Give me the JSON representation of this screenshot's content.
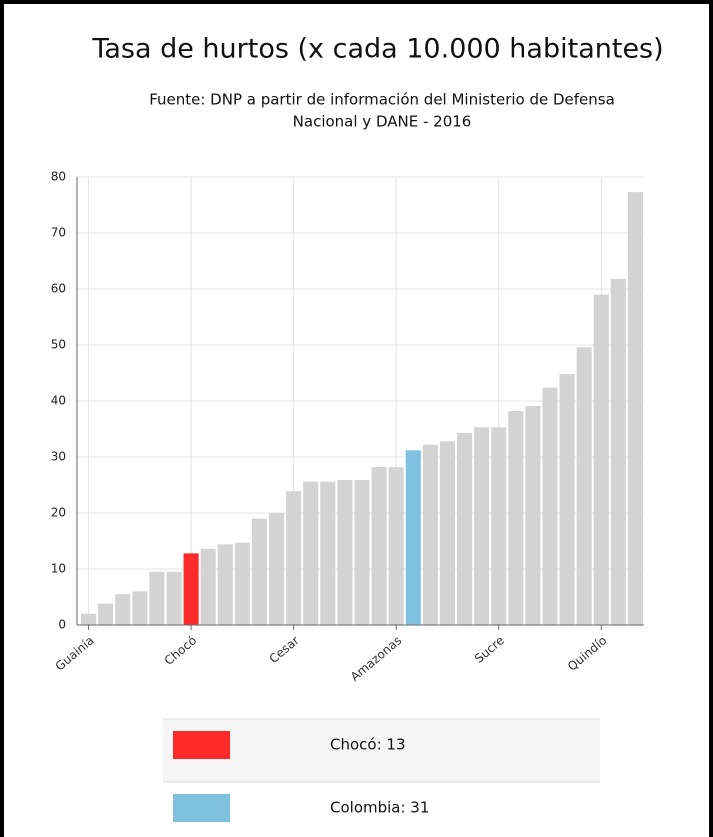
{
  "chart_data": {
    "type": "bar",
    "title": "Tasa de hurtos (x cada 10.000 habitantes)",
    "subtitle": [
      "Fuente: DNP a partir de información del Ministerio de Defensa",
      "Nacional y DANE - 2016"
    ],
    "categories": [
      "Guainía",
      null,
      null,
      null,
      null,
      null,
      "Chocó",
      null,
      null,
      null,
      null,
      null,
      "Cesar",
      null,
      null,
      null,
      null,
      null,
      "Amazonas",
      null,
      null,
      null,
      null,
      null,
      "Sucre",
      null,
      null,
      null,
      null,
      null,
      "Quindío",
      null,
      null
    ],
    "values": [
      2,
      3.8,
      5.5,
      6,
      9.5,
      9.5,
      12.8,
      13.6,
      14.4,
      14.7,
      19,
      20,
      23.9,
      25.6,
      25.6,
      25.9,
      25.9,
      28.2,
      28.2,
      31.2,
      32.2,
      32.8,
      34.3,
      35.3,
      35.3,
      38.2,
      39.1,
      42.4,
      44.8,
      49.6,
      59,
      61.8,
      77.3
    ],
    "colors": [
      "#d3d3d3",
      "#d3d3d3",
      "#d3d3d3",
      "#d3d3d3",
      "#d3d3d3",
      "#d3d3d3",
      "#ff2a2a",
      "#d3d3d3",
      "#d3d3d3",
      "#d3d3d3",
      "#d3d3d3",
      "#d3d3d3",
      "#d3d3d3",
      "#d3d3d3",
      "#d3d3d3",
      "#d3d3d3",
      "#d3d3d3",
      "#d3d3d3",
      "#d3d3d3",
      "#7fc1e0",
      "#d3d3d3",
      "#d3d3d3",
      "#d3d3d3",
      "#d3d3d3",
      "#d3d3d3",
      "#d3d3d3",
      "#d3d3d3",
      "#d3d3d3",
      "#d3d3d3",
      "#d3d3d3",
      "#d3d3d3",
      "#d3d3d3",
      "#d3d3d3"
    ],
    "ylim": [
      0,
      80
    ],
    "yticks": [
      0,
      10,
      20,
      30,
      40,
      50,
      60,
      70,
      80
    ],
    "grid": true,
    "legend": [
      {
        "label": "Chocó: 13",
        "color": "#ff2a2a"
      },
      {
        "label": "Colombia: 31",
        "color": "#7fc1e0"
      }
    ]
  }
}
